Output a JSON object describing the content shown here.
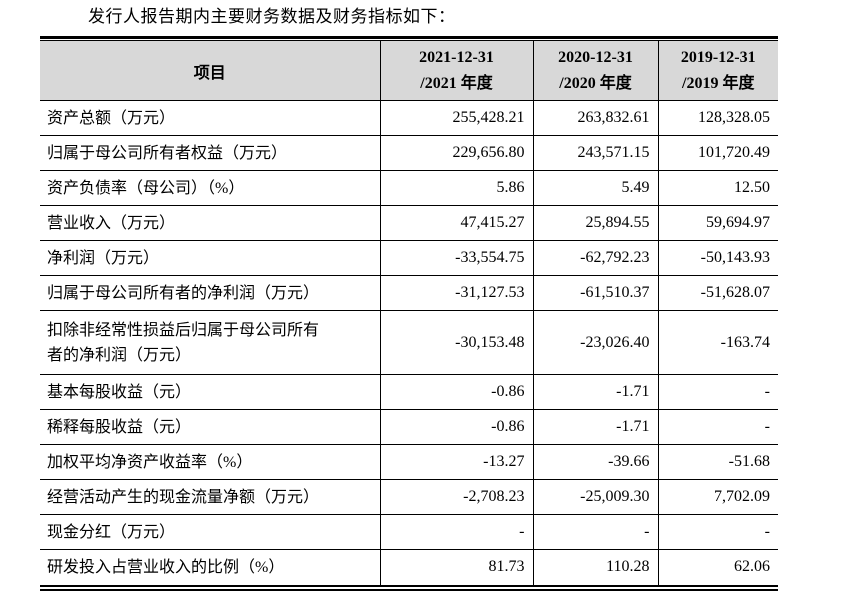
{
  "title": "发行人报告期内主要财务数据及财务指标如下：",
  "colors": {
    "header_bg": "#d8d8d8",
    "border": "#000000",
    "text": "#000000",
    "page_bg": "#ffffff"
  },
  "table": {
    "header": {
      "item_label": "项目",
      "periods": [
        {
          "line1": "2021-12-31",
          "line2": "/2021 年度"
        },
        {
          "line1": "2020-12-31",
          "line2": "/2020 年度"
        },
        {
          "line1": "2019-12-31",
          "line2": "/2019 年度"
        }
      ]
    },
    "rows": [
      {
        "label": "资产总额（万元）",
        "values": [
          "255,428.21",
          "263,832.61",
          "128,328.05"
        ],
        "tall": false
      },
      {
        "label": "归属于母公司所有者权益（万元）",
        "values": [
          "229,656.80",
          "243,571.15",
          "101,720.49"
        ],
        "tall": false
      },
      {
        "label": "资产负债率（母公司）（%）",
        "values": [
          "5.86",
          "5.49",
          "12.50"
        ],
        "tall": false
      },
      {
        "label": "营业收入（万元）",
        "values": [
          "47,415.27",
          "25,894.55",
          "59,694.97"
        ],
        "tall": false
      },
      {
        "label": "净利润（万元）",
        "values": [
          "-33,554.75",
          "-62,792.23",
          "-50,143.93"
        ],
        "tall": false
      },
      {
        "label": "归属于母公司所有者的净利润（万元）",
        "values": [
          "-31,127.53",
          "-61,510.37",
          "-51,628.07"
        ],
        "tall": false
      },
      {
        "label": "扣除非经常性损益后归属于母公司所有者的净利润（万元）",
        "values": [
          "-30,153.48",
          "-23,026.40",
          "-163.74"
        ],
        "tall": true
      },
      {
        "label": "基本每股收益（元）",
        "values": [
          "-0.86",
          "-1.71",
          "-"
        ],
        "tall": false
      },
      {
        "label": "稀释每股收益（元）",
        "values": [
          "-0.86",
          "-1.71",
          "-"
        ],
        "tall": false
      },
      {
        "label": "加权平均净资产收益率（%）",
        "values": [
          "-13.27",
          "-39.66",
          "-51.68"
        ],
        "tall": false
      },
      {
        "label": "经营活动产生的现金流量净额（万元）",
        "values": [
          "-2,708.23",
          "-25,009.30",
          "7,702.09"
        ],
        "tall": false
      },
      {
        "label": "现金分红（万元）",
        "values": [
          "-",
          "-",
          "-"
        ],
        "tall": false
      },
      {
        "label": "研发投入占营业收入的比例（%）",
        "values": [
          "81.73",
          "110.28",
          "62.06"
        ],
        "tall": false
      }
    ]
  }
}
